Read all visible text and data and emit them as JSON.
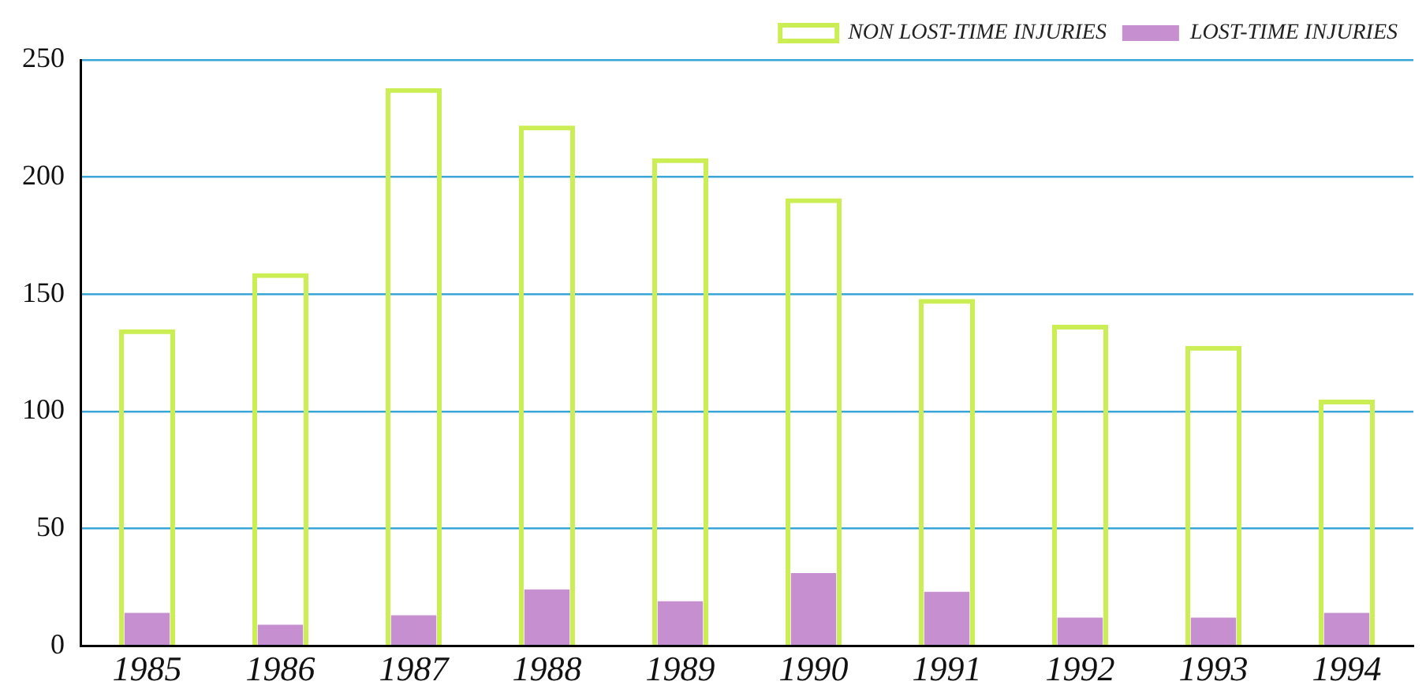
{
  "chart_data": {
    "type": "bar",
    "categories": [
      "1985",
      "1986",
      "1987",
      "1988",
      "1989",
      "1990",
      "1991",
      "1992",
      "1993",
      "1994"
    ],
    "series": [
      {
        "name": "NON LOST-TIME INJURIES",
        "color": "#ccee55",
        "values": [
          135,
          159,
          238,
          222,
          208,
          191,
          148,
          137,
          128,
          105
        ]
      },
      {
        "name": "LOST-TIME INJURIES",
        "color": "#c58fd0",
        "values": [
          14,
          9,
          13,
          24,
          19,
          31,
          23,
          12,
          12,
          14
        ]
      }
    ],
    "ylim": [
      0,
      250
    ],
    "yticks": [
      0,
      50,
      100,
      150,
      200,
      250
    ],
    "grid": "y",
    "legend": "top right"
  }
}
